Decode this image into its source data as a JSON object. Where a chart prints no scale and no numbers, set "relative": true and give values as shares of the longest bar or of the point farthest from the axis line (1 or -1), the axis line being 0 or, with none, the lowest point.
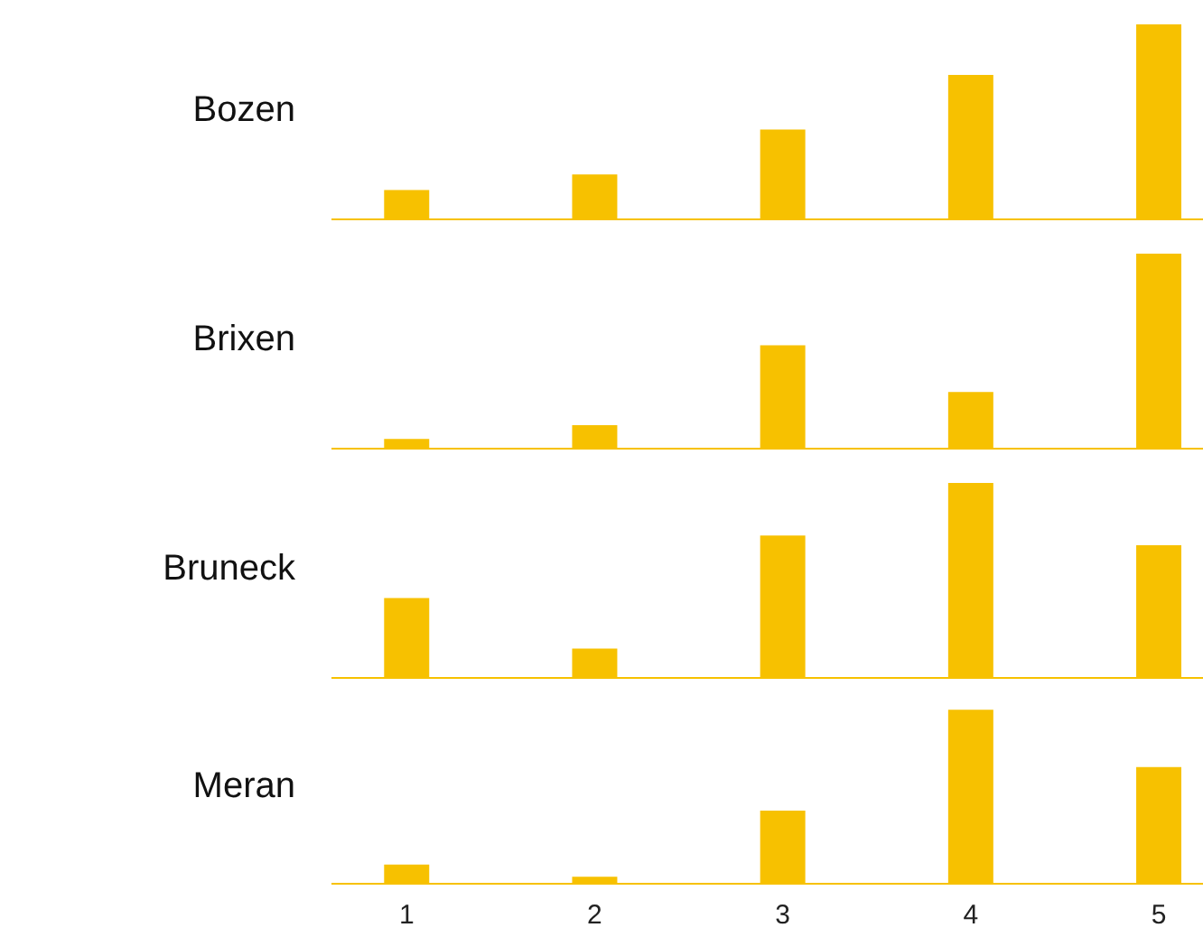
{
  "chart_data": [
    {
      "type": "bar",
      "ylabel": "Bozen",
      "categories": [
        null,
        null,
        null,
        null,
        null
      ],
      "values": [
        0.15,
        0.23,
        0.46,
        0.74,
        1
      ],
      "color": "#f7c100",
      "relative": true,
      "tick_labels": false
    },
    {
      "type": "bar",
      "ylabel": "Brixen",
      "categories": [
        null,
        null,
        null,
        null,
        null
      ],
      "values": [
        0.05,
        0.12,
        0.53,
        0.29,
        1
      ],
      "color": "#f7c100",
      "relative": true,
      "tick_labels": false
    },
    {
      "type": "bar",
      "ylabel": "Bruneck",
      "categories": [
        null,
        null,
        null,
        null,
        null
      ],
      "values": [
        0.41,
        0.15,
        0.73,
        1,
        0.68
      ],
      "color": "#f7c100",
      "relative": true,
      "tick_labels": false
    },
    {
      "type": "bar",
      "ylabel": "Meran",
      "categories": [
        "1",
        "2",
        "3",
        "4",
        "5"
      ],
      "values": [
        0.11,
        0.04,
        0.42,
        1,
        0.67
      ],
      "color": "#f7c100",
      "relative": true,
      "tick_labels": "x"
    }
  ]
}
